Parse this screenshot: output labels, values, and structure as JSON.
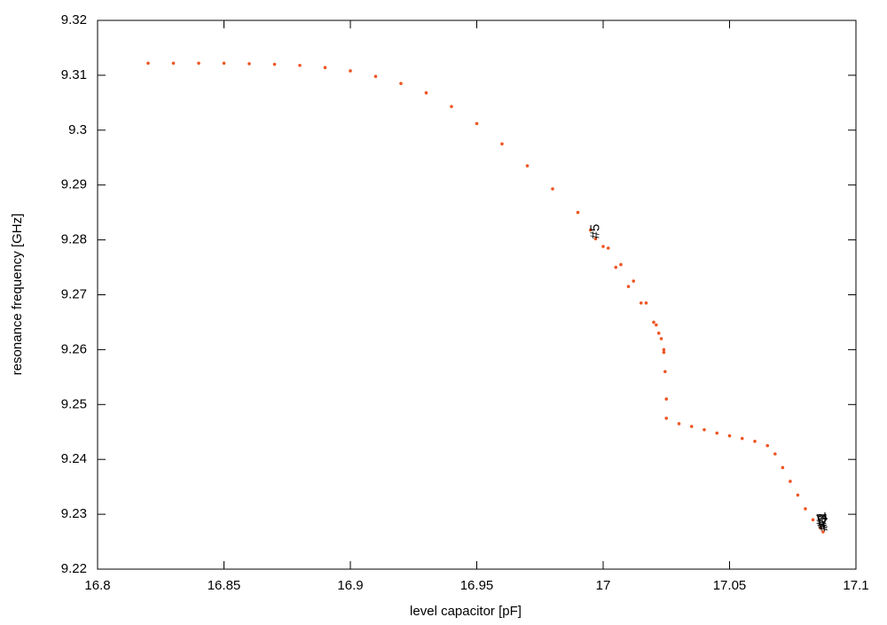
{
  "chart_data": {
    "type": "scatter",
    "xlabel": "level capacitor [pF]",
    "ylabel": "resonance frequency [GHz]",
    "xlim": [
      16.8,
      17.1
    ],
    "xticks": [
      16.8,
      16.85,
      16.9,
      16.95,
      17,
      17.05,
      17.1
    ],
    "ylim": [
      9.22,
      9.32
    ],
    "yticks": [
      9.22,
      9.23,
      9.24,
      9.25,
      9.26,
      9.27,
      9.28,
      9.29,
      9.3,
      9.31,
      9.32
    ],
    "series": [
      {
        "color": "#ee5522",
        "x": [
          16.82,
          16.83,
          16.84,
          16.85,
          16.86,
          16.87,
          16.88,
          16.89,
          16.9,
          16.91,
          16.92,
          16.93,
          16.94,
          16.95,
          16.96,
          16.97,
          16.98,
          16.99,
          16.995,
          17.0,
          17.005,
          17.01,
          17.015,
          17.02,
          17.022,
          17.024,
          17.0245,
          17.025,
          16.997,
          17.002,
          17.007,
          17.012,
          17.017,
          17.021,
          17.023,
          17.024,
          17.025,
          17.03,
          17.035,
          17.04,
          17.045,
          17.05,
          17.055,
          17.06,
          17.065,
          17.068,
          17.071,
          17.074,
          17.077,
          17.08,
          17.083,
          17.086,
          17.087
        ],
        "values": [
          9.3122,
          9.3122,
          9.3122,
          9.3122,
          9.3121,
          9.312,
          9.3118,
          9.3114,
          9.3108,
          9.3098,
          9.3085,
          9.3068,
          9.3043,
          9.3012,
          9.2975,
          9.2935,
          9.2893,
          9.285,
          9.2818,
          9.2788,
          9.275,
          9.2715,
          9.2685,
          9.265,
          9.263,
          9.26,
          9.256,
          9.251,
          9.2802,
          9.2785,
          9.2755,
          9.2725,
          9.2685,
          9.2645,
          9.262,
          9.2595,
          9.2475,
          9.2465,
          9.246,
          9.2454,
          9.2448,
          9.2443,
          9.2438,
          9.2433,
          9.2425,
          9.241,
          9.2385,
          9.236,
          9.2335,
          9.231,
          9.229,
          9.2275,
          9.2268
        ]
      }
    ],
    "annotations": [
      {
        "text": "#5",
        "x": 16.997,
        "y": 9.2802
      },
      {
        "text": "#1",
        "x": 17.0865,
        "y": 9.2278
      },
      {
        "text": "#2",
        "x": 17.0868,
        "y": 9.2275
      },
      {
        "text": "#3",
        "x": 17.0871,
        "y": 9.2272
      },
      {
        "text": "#4",
        "x": 17.0874,
        "y": 9.2269
      }
    ]
  }
}
